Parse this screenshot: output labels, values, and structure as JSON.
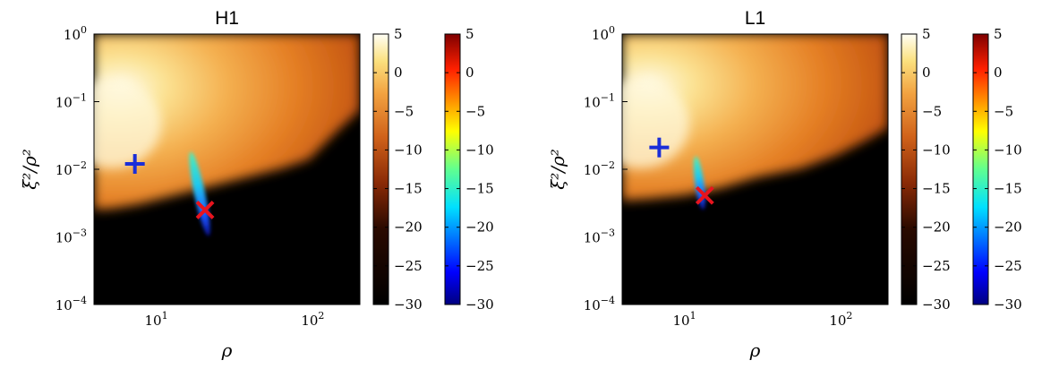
{
  "chart_data": [
    {
      "type": "heatmap",
      "title": "H1",
      "xlabel": "ρ",
      "ylabel": "ξ²/ρ²",
      "xscale": "log",
      "yscale": "log",
      "xlim": [
        4,
        200
      ],
      "ylim": [
        0.0001,
        1
      ],
      "x_tick_labels": [
        {
          "value": 10,
          "base": "10",
          "exp": "1"
        },
        {
          "value": 100,
          "base": "10",
          "exp": "2"
        }
      ],
      "y_tick_labels": [
        {
          "value": 0.0001,
          "base": "10",
          "exp": "−4"
        },
        {
          "value": 0.001,
          "base": "10",
          "exp": "−3"
        },
        {
          "value": 0.01,
          "base": "10",
          "exp": "−2"
        },
        {
          "value": 0.1,
          "base": "10",
          "exp": "−1"
        },
        {
          "value": 1,
          "base": "10",
          "exp": "0"
        }
      ],
      "colorbars": [
        {
          "colormap": "hot",
          "range": [
            -30,
            5
          ],
          "tick_labels": [
            "5",
            "0",
            "−5",
            "−10",
            "−15",
            "−20",
            "−25",
            "−30"
          ]
        },
        {
          "colormap": "jet",
          "range": [
            -30,
            5
          ],
          "tick_labels": [
            "5",
            "0",
            "−5",
            "−10",
            "−15",
            "−20",
            "−25",
            "−30"
          ]
        }
      ],
      "markers": [
        {
          "symbol": "+",
          "color": "#1a2ed8",
          "x": 7.3,
          "y": 0.012
        },
        {
          "symbol": "x",
          "color": "#e8141e",
          "x": 20.5,
          "y": 0.0025
        }
      ]
    },
    {
      "type": "heatmap",
      "title": "L1",
      "xlabel": "ρ",
      "ylabel": "ξ²/ρ²",
      "xscale": "log",
      "yscale": "log",
      "xlim": [
        4,
        200
      ],
      "ylim": [
        0.0001,
        1
      ],
      "x_tick_labels": [
        {
          "value": 10,
          "base": "10",
          "exp": "1"
        },
        {
          "value": 100,
          "base": "10",
          "exp": "2"
        }
      ],
      "y_tick_labels": [
        {
          "value": 0.0001,
          "base": "10",
          "exp": "−4"
        },
        {
          "value": 0.001,
          "base": "10",
          "exp": "−3"
        },
        {
          "value": 0.01,
          "base": "10",
          "exp": "−2"
        },
        {
          "value": 0.1,
          "base": "10",
          "exp": "−1"
        },
        {
          "value": 1,
          "base": "10",
          "exp": "0"
        }
      ],
      "colorbars": [
        {
          "colormap": "hot",
          "range": [
            -30,
            5
          ],
          "tick_labels": [
            "5",
            "0",
            "−5",
            "−10",
            "−15",
            "−20",
            "−25",
            "−30"
          ]
        },
        {
          "colormap": "jet",
          "range": [
            -30,
            5
          ],
          "tick_labels": [
            "5",
            "0",
            "−5",
            "−10",
            "−15",
            "−20",
            "−25",
            "−30"
          ]
        }
      ],
      "markers": [
        {
          "symbol": "+",
          "color": "#1a2ed8",
          "x": 6.9,
          "y": 0.021
        },
        {
          "symbol": "x",
          "color": "#e8141e",
          "x": 13.5,
          "y": 0.0041
        }
      ]
    }
  ]
}
